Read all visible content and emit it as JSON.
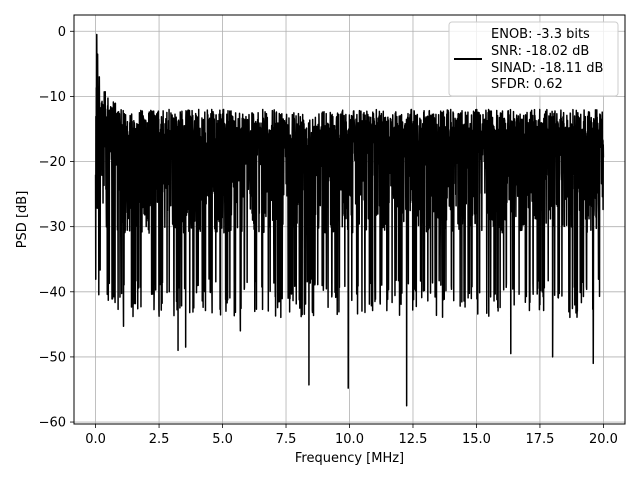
{
  "chart_data": {
    "type": "line",
    "xlabel": "Frequency [MHz]",
    "ylabel": "PSD [dB]",
    "xlim": [
      -0.85,
      20.85
    ],
    "ylim": [
      -60.3,
      2.5
    ],
    "xticks": [
      0.0,
      2.5,
      5.0,
      7.5,
      10.0,
      12.5,
      15.0,
      17.5,
      20.0
    ],
    "xtick_labels": [
      "0.0",
      "2.5",
      "5.0",
      "7.5",
      "10.0",
      "12.5",
      "15.0",
      "17.5",
      "20.0"
    ],
    "yticks": [
      0,
      -10,
      -20,
      -30,
      -40,
      -50,
      -60
    ],
    "ytick_labels": [
      "0",
      "−10",
      "−20",
      "−30",
      "−40",
      "−50",
      "−60"
    ],
    "grid": true,
    "legend_position": "top-right",
    "legend_entries": [
      "ENOB: -3.3 bits",
      "SNR: -18.02 dB",
      "SINAD: -18.11 dB",
      "SFDR: 0.62"
    ],
    "series": [
      {
        "color": "#000000",
        "description": "noise-like power spectral density, roughly between -12 and -35 dB with deep dips",
        "x_range": [
          0,
          20
        ],
        "band": [
          -35,
          -12
        ],
        "peak": {
          "x": 0.05,
          "y": -0.5
        },
        "dips": [
          {
            "x": 1.1,
            "y": -45.3
          },
          {
            "x": 3.25,
            "y": -49.0
          },
          {
            "x": 3.55,
            "y": -48.5
          },
          {
            "x": 5.7,
            "y": -46.0
          },
          {
            "x": 8.4,
            "y": -54.3
          },
          {
            "x": 9.95,
            "y": -54.8
          },
          {
            "x": 12.25,
            "y": -57.5
          },
          {
            "x": 16.35,
            "y": -49.5
          },
          {
            "x": 18.0,
            "y": -50.0
          },
          {
            "x": 19.6,
            "y": -51.0
          }
        ]
      }
    ]
  }
}
